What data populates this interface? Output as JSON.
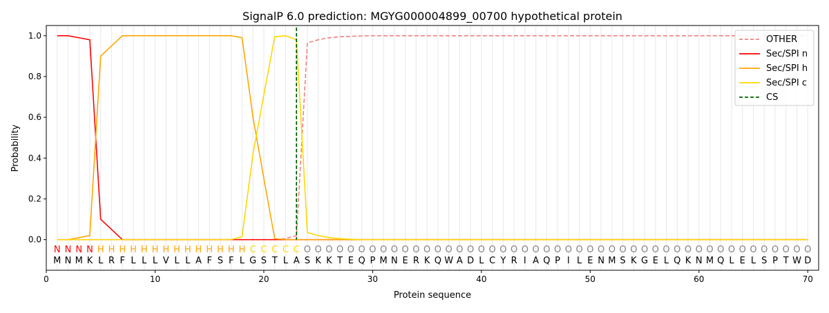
{
  "chart_data": {
    "type": "line",
    "title": "SignalP 6.0 prediction: MGYG000004899_00700 hypothetical protein",
    "xlabel": "Protein sequence",
    "ylabel": "Probability",
    "xlim": [
      0,
      71
    ],
    "ylim": [
      -0.15,
      1.05
    ],
    "xticks": [
      0,
      10,
      20,
      30,
      40,
      50,
      60,
      70
    ],
    "yticks": [
      0.0,
      0.2,
      0.4,
      0.6,
      0.8,
      1.0
    ],
    "legend_position": "top-right",
    "grid": "vertical lines at each residue",
    "sequence": [
      "M",
      "N",
      "M",
      "K",
      "L",
      "R",
      "F",
      "L",
      "L",
      "L",
      "V",
      "L",
      "L",
      "A",
      "F",
      "S",
      "F",
      "L",
      "G",
      "S",
      "T",
      "L",
      "A",
      "S",
      "K",
      "K",
      "T",
      "E",
      "Q",
      "P",
      "M",
      "N",
      "E",
      "R",
      "K",
      "Q",
      "W",
      "A",
      "D",
      "L",
      "C",
      "Y",
      "R",
      "I",
      "A",
      "Q",
      "P",
      "I",
      "L",
      "E",
      "N",
      "M",
      "S",
      "K",
      "G",
      "E",
      "L",
      "Q",
      "K",
      "N",
      "M",
      "Q",
      "L",
      "E",
      "L",
      "S",
      "P",
      "T",
      "W",
      "D"
    ],
    "labels": [
      "N",
      "N",
      "N",
      "N",
      "H",
      "H",
      "H",
      "H",
      "H",
      "H",
      "H",
      "H",
      "H",
      "H",
      "H",
      "H",
      "H",
      "H",
      "C",
      "C",
      "C",
      "C",
      "C",
      "O",
      "O",
      "O",
      "O",
      "O",
      "O",
      "O",
      "O",
      "O",
      "O",
      "O",
      "O",
      "O",
      "O",
      "O",
      "O",
      "O",
      "O",
      "O",
      "O",
      "O",
      "O",
      "O",
      "O",
      "O",
      "O",
      "O",
      "O",
      "O",
      "O",
      "O",
      "O",
      "O",
      "O",
      "O",
      "O",
      "O",
      "O",
      "O",
      "O",
      "O",
      "O",
      "O",
      "O",
      "O",
      "O",
      "O"
    ],
    "label_colors": {
      "N": "#ff0000",
      "H": "#ffa500",
      "C": "#ffd700",
      "O": "#808080"
    },
    "series": [
      {
        "name": "OTHER",
        "color": "#f08080",
        "dashed": true,
        "values": [
          0,
          0,
          0,
          0,
          0,
          0,
          0,
          0,
          0,
          0,
          0,
          0,
          0,
          0,
          0,
          0,
          0,
          0,
          0,
          0,
          0,
          0.005,
          0.02,
          0.965,
          0.98,
          0.99,
          0.995,
          0.997,
          0.999,
          1,
          1,
          1,
          1,
          1,
          1,
          1,
          1,
          1,
          1,
          1,
          1,
          1,
          1,
          1,
          1,
          1,
          1,
          1,
          1,
          1,
          1,
          1,
          1,
          1,
          1,
          1,
          1,
          1,
          1,
          1,
          1,
          1,
          1,
          1,
          1,
          1,
          1,
          1,
          1,
          1
        ]
      },
      {
        "name": "Sec/SPI n",
        "color": "#ff0000",
        "dashed": false,
        "values": [
          1.0,
          1.0,
          0.99,
          0.98,
          0.1,
          0.05,
          0,
          0,
          0,
          0,
          0,
          0,
          0,
          0,
          0,
          0,
          0,
          0,
          0,
          0,
          0,
          0,
          0,
          0,
          0,
          0,
          0,
          0,
          0,
          0,
          0,
          0,
          0,
          0,
          0,
          0,
          0,
          0,
          0,
          0,
          0,
          0,
          0,
          0,
          0,
          0,
          0,
          0,
          0,
          0,
          0,
          0,
          0,
          0,
          0,
          0,
          0,
          0,
          0,
          0,
          0,
          0,
          0,
          0,
          0,
          0,
          0,
          0,
          0,
          0
        ]
      },
      {
        "name": "Sec/SPI h",
        "color": "#ffa500",
        "dashed": false,
        "values": [
          0,
          0,
          0.01,
          0.02,
          0.9,
          0.95,
          1.0,
          1.0,
          1.0,
          1.0,
          1.0,
          1.0,
          1.0,
          1.0,
          1.0,
          1.0,
          1.0,
          0.99,
          0.6,
          0.3,
          0.005,
          0,
          0,
          0,
          0,
          0,
          0,
          0,
          0,
          0,
          0,
          0,
          0,
          0,
          0,
          0,
          0,
          0,
          0,
          0,
          0,
          0,
          0,
          0,
          0,
          0,
          0,
          0,
          0,
          0,
          0,
          0,
          0,
          0,
          0,
          0,
          0,
          0,
          0,
          0,
          0,
          0,
          0,
          0,
          0,
          0,
          0,
          0,
          0,
          0
        ]
      },
      {
        "name": "Sec/SPI c",
        "color": "#ffd700",
        "dashed": false,
        "values": [
          0,
          0,
          0,
          0,
          0,
          0,
          0,
          0,
          0,
          0,
          0,
          0,
          0,
          0,
          0,
          0,
          0,
          0.015,
          0.42,
          0.71,
          0.995,
          1.0,
          0.98,
          0.035,
          0.02,
          0.01,
          0.005,
          0.002,
          0,
          0,
          0,
          0,
          0,
          0,
          0,
          0,
          0,
          0,
          0,
          0,
          0,
          0,
          0,
          0,
          0,
          0,
          0,
          0,
          0,
          0,
          0,
          0,
          0,
          0,
          0,
          0,
          0,
          0,
          0,
          0,
          0,
          0,
          0,
          0,
          0,
          0,
          0,
          0,
          0,
          0
        ]
      }
    ],
    "cs": {
      "name": "CS",
      "position": 23,
      "color": "#006400"
    }
  }
}
